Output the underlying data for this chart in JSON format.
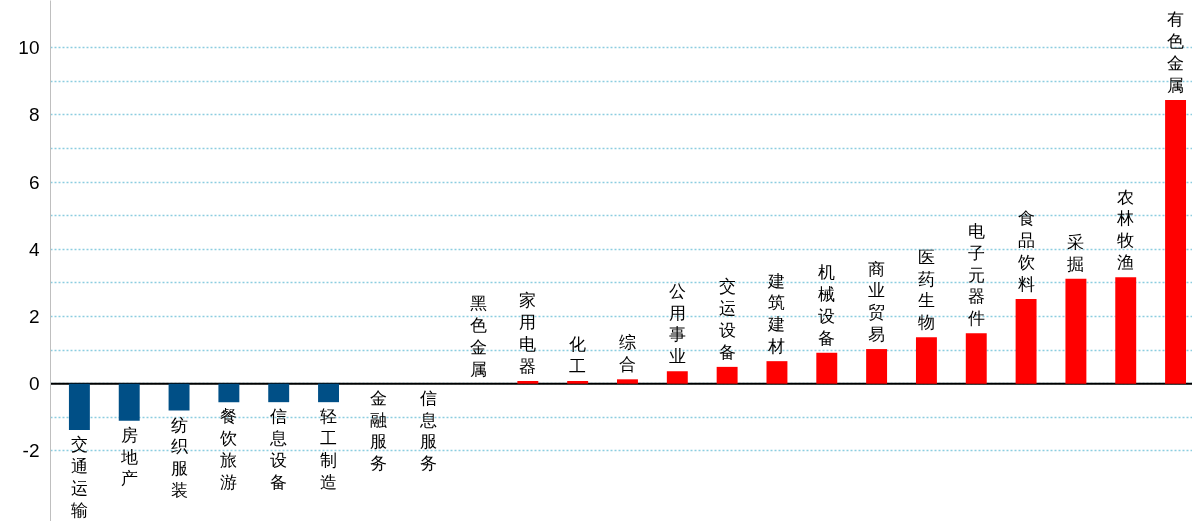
{
  "chart_data": {
    "type": "bar",
    "categories": [
      "交通运输",
      "房地产",
      "纺织服装",
      "餐饮旅游",
      "信息设备",
      "轻工制造",
      "金融服务",
      "信息服务",
      "黑色金属",
      "家用电器",
      "化工",
      "综合",
      "公用事业",
      "交运设备",
      "建筑建材",
      "机械设备",
      "商业贸易",
      "医药生物",
      "电子元器件",
      "食品饮料",
      "采掘",
      "农林牧渔",
      "有色金属"
    ],
    "values": [
      -1.38,
      -1.1,
      -0.8,
      -0.55,
      -0.55,
      -0.55,
      0,
      0,
      0,
      0.08,
      0.08,
      0.13,
      0.37,
      0.5,
      0.67,
      0.92,
      1.03,
      1.38,
      1.5,
      2.52,
      3.12,
      3.17,
      8.44
    ],
    "colors": [
      "#004f86",
      "#004f86",
      "#004f86",
      "#004f86",
      "#004f86",
      "#004f86",
      "#004f86",
      "#004f86",
      "#ff0000",
      "#ff0000",
      "#ff0000",
      "#ff0000",
      "#ff0000",
      "#ff0000",
      "#ff0000",
      "#ff0000",
      "#ff0000",
      "#ff0000",
      "#ff0000",
      "#ff0000",
      "#ff0000",
      "#ff0000",
      "#ff0000"
    ],
    "ylim": [
      -4.1,
      11.4
    ],
    "yticks": [
      -2,
      {
        "value": -1,
        "label": null
      },
      0,
      {
        "value": 1,
        "label": null
      },
      2,
      {
        "value": 3,
        "label": null
      },
      4,
      {
        "value": 5,
        "label": null
      },
      6,
      {
        "value": 7,
        "label": null
      },
      8,
      {
        "value": 9,
        "label": null
      },
      10
    ],
    "grid": "y"
  }
}
